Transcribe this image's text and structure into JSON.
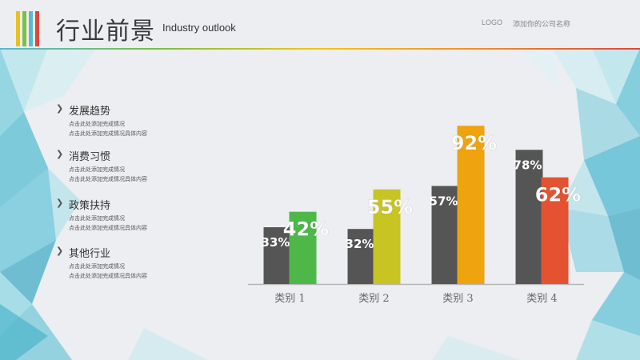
{
  "header": {
    "title": "行业前景",
    "subtitle": "Industry outlook",
    "logo_text": "LOGO",
    "company_text": "添加你的公司名称"
  },
  "sidebar": {
    "items": [
      {
        "title": "发展趋势",
        "desc1": "点击此处添加完成情况",
        "desc2": "点击此处添加完成情况具体内容"
      },
      {
        "title": "消费习惯",
        "desc1": "点击此处添加完成情况",
        "desc2": "点击此处添加完成情况具体内容"
      },
      {
        "title": "政策扶持",
        "desc1": "点击此处添加完成情况",
        "desc2": "点击此处添加完成情况具体内容"
      },
      {
        "title": "其他行业",
        "desc1": "点击此处添加完成情况",
        "desc2": "点击此处添加完成情况具体内容"
      }
    ]
  },
  "colors": {
    "accent_bars": [
      "#e8c021",
      "#7bc043",
      "#5bb8d4",
      "#e0463a"
    ],
    "grey": "#555555"
  },
  "chart_data": {
    "type": "bar",
    "categories": [
      "类别 1",
      "类别 2",
      "类别 3",
      "类别 4"
    ],
    "series": [
      {
        "values": [
          33,
          32,
          57,
          78
        ],
        "labels": [
          "33%",
          "32%",
          "57%",
          "78%"
        ],
        "colors": [
          "#555555",
          "#555555",
          "#555555",
          "#555555"
        ]
      },
      {
        "values": [
          42,
          55,
          92,
          62
        ],
        "labels": [
          "42%",
          "55%",
          "92%",
          "62%"
        ],
        "colors": [
          "#4db848",
          "#c7c424",
          "#eea30f",
          "#e45231"
        ]
      }
    ],
    "ylim": [
      0,
      100
    ],
    "grid": false,
    "legend": "none"
  }
}
